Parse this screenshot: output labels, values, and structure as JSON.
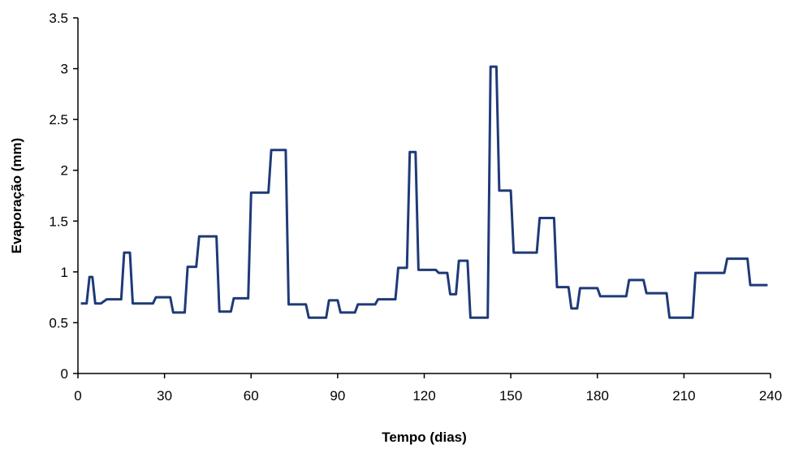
{
  "chart_data": {
    "type": "line",
    "title": "",
    "xlabel": "Tempo (dias)",
    "ylabel": "Evaporação (mm)",
    "xlim": [
      0,
      240
    ],
    "ylim": [
      0,
      3.5
    ],
    "xticks": [
      0,
      30,
      60,
      90,
      120,
      150,
      180,
      210,
      240
    ],
    "yticks": [
      0,
      0.5,
      1,
      1.5,
      2,
      2.5,
      3,
      3.5
    ],
    "xtick_labels": [
      "0",
      "30",
      "60",
      "90",
      "120",
      "150",
      "180",
      "210",
      "240"
    ],
    "ytick_labels": [
      "0",
      "0.5",
      "1",
      "1.5",
      "2",
      "2.5",
      "3",
      "3.5"
    ],
    "grid": false,
    "legend": "none",
    "series": [
      {
        "color": "#1f3a78",
        "points": [
          [
            1,
            0.69
          ],
          [
            3,
            0.69
          ],
          [
            4,
            0.95
          ],
          [
            5,
            0.95
          ],
          [
            6,
            0.69
          ],
          [
            8,
            0.69
          ],
          [
            10,
            0.73
          ],
          [
            15,
            0.73
          ],
          [
            16,
            1.19
          ],
          [
            18,
            1.19
          ],
          [
            19,
            0.69
          ],
          [
            26,
            0.69
          ],
          [
            27,
            0.75
          ],
          [
            32,
            0.75
          ],
          [
            33,
            0.6
          ],
          [
            37,
            0.6
          ],
          [
            38,
            1.05
          ],
          [
            41,
            1.05
          ],
          [
            42,
            1.35
          ],
          [
            48,
            1.35
          ],
          [
            49,
            0.61
          ],
          [
            53,
            0.61
          ],
          [
            54,
            0.74
          ],
          [
            59,
            0.74
          ],
          [
            60,
            1.78
          ],
          [
            66,
            1.78
          ],
          [
            67,
            2.2
          ],
          [
            72,
            2.2
          ],
          [
            73,
            0.68
          ],
          [
            79,
            0.68
          ],
          [
            80,
            0.55
          ],
          [
            86,
            0.55
          ],
          [
            87,
            0.72
          ],
          [
            90,
            0.72
          ],
          [
            91,
            0.6
          ],
          [
            96,
            0.6
          ],
          [
            97,
            0.68
          ],
          [
            103,
            0.68
          ],
          [
            104,
            0.73
          ],
          [
            110,
            0.73
          ],
          [
            111,
            1.04
          ],
          [
            114,
            1.04
          ],
          [
            115,
            2.18
          ],
          [
            117,
            2.18
          ],
          [
            118,
            1.02
          ],
          [
            124,
            1.02
          ],
          [
            125,
            0.99
          ],
          [
            128,
            0.99
          ],
          [
            129,
            0.78
          ],
          [
            131,
            0.78
          ],
          [
            132,
            1.11
          ],
          [
            135,
            1.11
          ],
          [
            136,
            0.55
          ],
          [
            142,
            0.55
          ],
          [
            143,
            3.02
          ],
          [
            145,
            3.02
          ],
          [
            146,
            1.8
          ],
          [
            150,
            1.8
          ],
          [
            151,
            1.19
          ],
          [
            159,
            1.19
          ],
          [
            160,
            1.53
          ],
          [
            165,
            1.53
          ],
          [
            166,
            0.85
          ],
          [
            170,
            0.85
          ],
          [
            171,
            0.64
          ],
          [
            173,
            0.64
          ],
          [
            174,
            0.84
          ],
          [
            180,
            0.84
          ],
          [
            181,
            0.76
          ],
          [
            190,
            0.76
          ],
          [
            191,
            0.92
          ],
          [
            196,
            0.92
          ],
          [
            197,
            0.79
          ],
          [
            204,
            0.79
          ],
          [
            205,
            0.55
          ],
          [
            213,
            0.55
          ],
          [
            214,
            0.99
          ],
          [
            224,
            0.99
          ],
          [
            225,
            1.13
          ],
          [
            232,
            1.13
          ],
          [
            233,
            0.87
          ],
          [
            239,
            0.87
          ]
        ]
      }
    ]
  }
}
